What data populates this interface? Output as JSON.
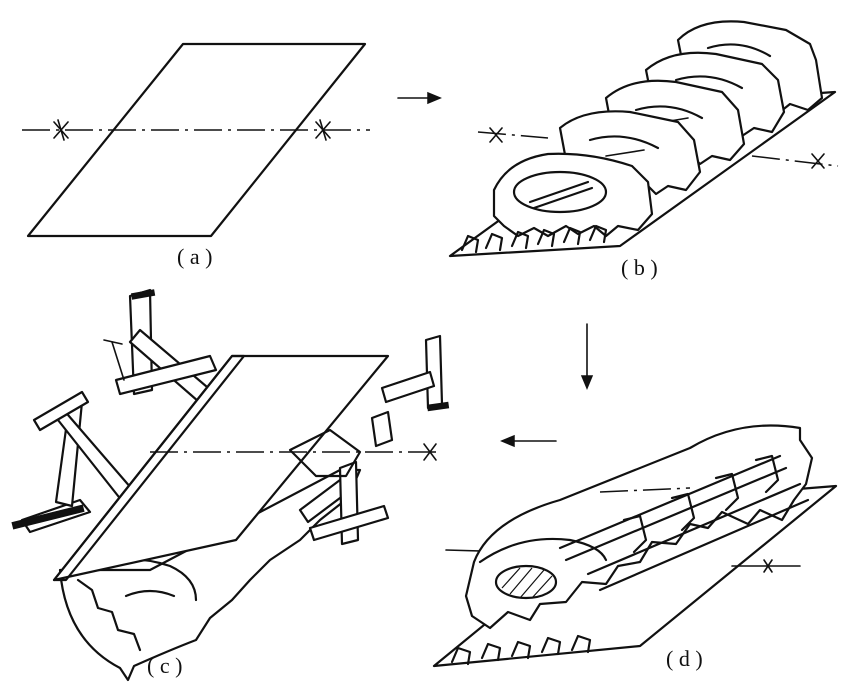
{
  "panels": [
    {
      "id": "a",
      "caption": "( a )"
    },
    {
      "id": "b",
      "caption": "( b )"
    },
    {
      "id": "c",
      "caption": "( c )"
    },
    {
      "id": "d",
      "caption": "( d )"
    }
  ]
}
